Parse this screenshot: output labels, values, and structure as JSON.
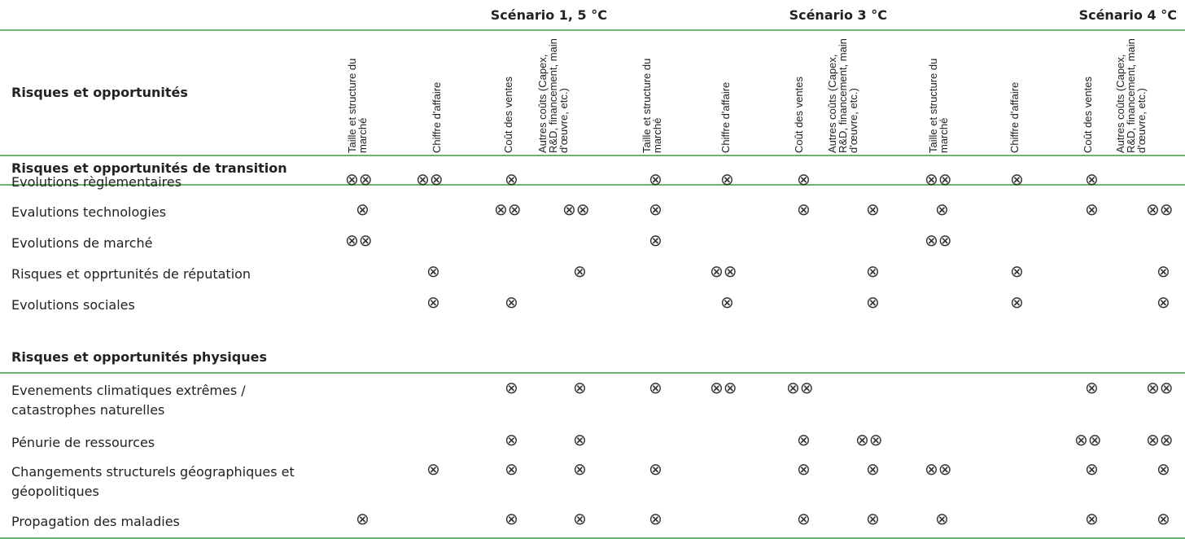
{
  "header": {
    "row_title": "Risques et opportunités",
    "scenarios": [
      "Scénario 1, 5 °C",
      "Scénario 3 °C",
      "Scénario 4 °C"
    ],
    "columns": [
      "Taille et structure du marché",
      "Chiffre d'affaire",
      "Coût des ventes",
      "Autres coûts (Capex, R&D, financement, main d'œuvre, etc.)"
    ]
  },
  "marker_symbol": "⊗",
  "sections": [
    {
      "title": "Risques et opportunités de transition",
      "rows": [
        {
          "label": "Evolutions règlementaires",
          "marks": [
            2,
            2,
            1,
            0,
            1,
            1,
            1,
            0,
            2,
            1,
            1,
            0
          ]
        },
        {
          "label": "Evalutions technologies",
          "marks": [
            1,
            0,
            2,
            2,
            1,
            0,
            1,
            1,
            1,
            0,
            1,
            2
          ]
        },
        {
          "label": "Evolutions de marché",
          "marks": [
            2,
            0,
            0,
            0,
            1,
            0,
            0,
            0,
            2,
            0,
            0,
            0
          ]
        },
        {
          "label": "Risques et opprtunités de réputation",
          "marks": [
            0,
            1,
            0,
            1,
            0,
            2,
            0,
            1,
            0,
            1,
            0,
            1
          ]
        },
        {
          "label": "Evolutions sociales",
          "marks": [
            0,
            1,
            1,
            0,
            0,
            1,
            0,
            1,
            0,
            1,
            0,
            1
          ]
        }
      ]
    },
    {
      "title": "Risques et opportunités physiques",
      "rows": [
        {
          "label": "Evenements climatiques extrêmes / catastrophes naturelles",
          "marks": [
            0,
            0,
            1,
            1,
            1,
            2,
            2,
            0,
            0,
            0,
            1,
            2
          ]
        },
        {
          "label": "Pénurie de ressources",
          "marks": [
            0,
            0,
            1,
            1,
            0,
            0,
            1,
            2,
            0,
            0,
            2,
            2
          ]
        },
        {
          "label": "Changements structurels géographiques et géopolitiques",
          "marks": [
            0,
            1,
            1,
            1,
            1,
            0,
            1,
            1,
            2,
            0,
            1,
            1
          ]
        },
        {
          "label": "Propagation des maladies",
          "marks": [
            1,
            0,
            1,
            1,
            1,
            0,
            1,
            1,
            1,
            0,
            1,
            1
          ]
        }
      ]
    }
  ]
}
